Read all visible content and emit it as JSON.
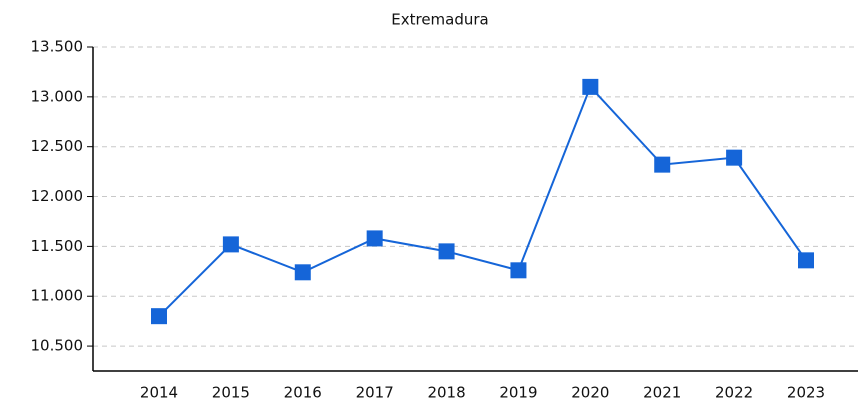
{
  "chart_data": {
    "type": "line",
    "title": "Extremadura",
    "categories": [
      "2014",
      "2015",
      "2016",
      "2017",
      "2018",
      "2019",
      "2020",
      "2021",
      "2022",
      "2023"
    ],
    "series": [
      {
        "name": "Extremadura",
        "color": "#1565d8",
        "values": [
          10800,
          11520,
          11240,
          11580,
          11450,
          11260,
          13100,
          12320,
          12390,
          11360
        ]
      }
    ],
    "ylim": [
      10250,
      13500
    ],
    "yticks": [
      {
        "value": 10500,
        "label": "10.500"
      },
      {
        "value": 11000,
        "label": "11.000"
      },
      {
        "value": 11500,
        "label": "11.500"
      },
      {
        "value": 12000,
        "label": "12.000"
      },
      {
        "value": 12500,
        "label": "12.500"
      },
      {
        "value": 13000,
        "label": "13.000"
      },
      {
        "value": 13500,
        "label": "13.500"
      }
    ],
    "grid": true
  }
}
